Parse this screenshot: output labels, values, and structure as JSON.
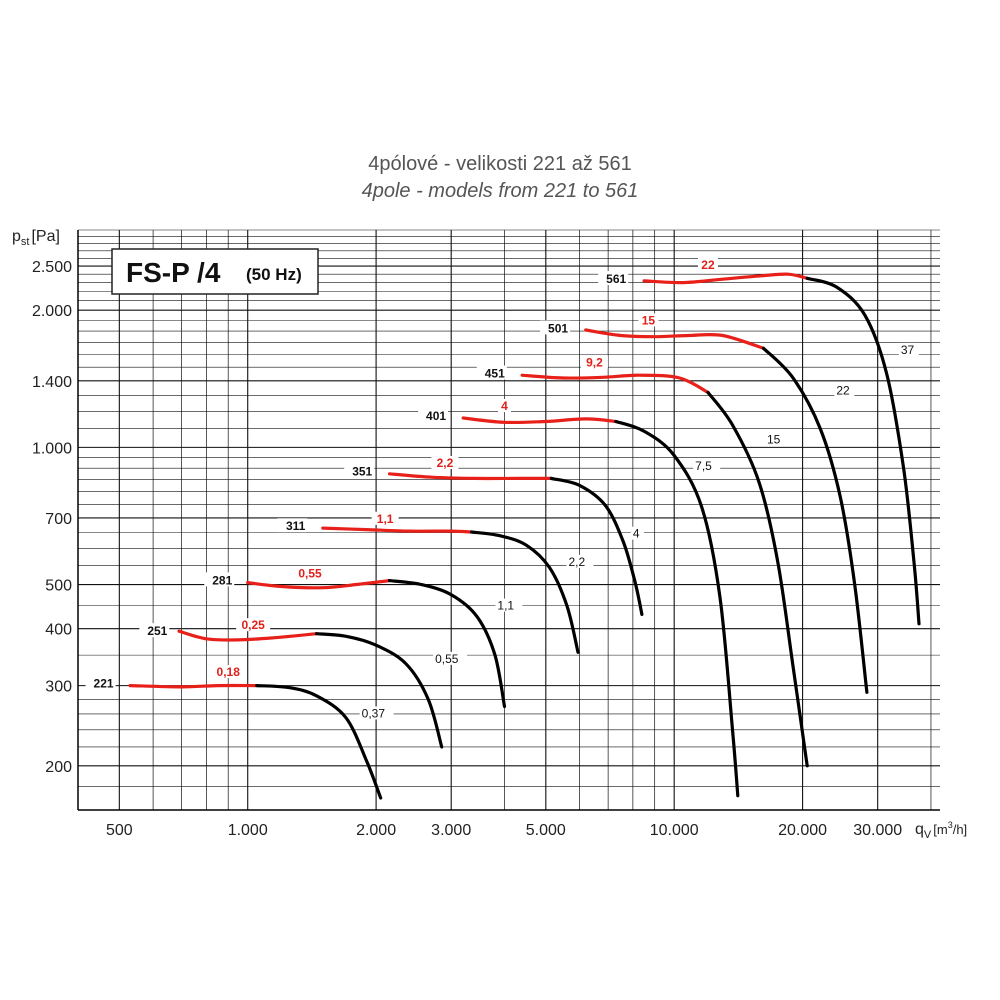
{
  "chart_data": {
    "type": "line",
    "title": "4pólové - velikosti 221 až 561",
    "subtitle": "4pole - models from 221 to 561",
    "ylabel": "p",
    "ylabel_sub": "st",
    "ylabel_unit": "[Pa]",
    "xlabel": "q",
    "xlabel_sub": "V",
    "xlabel_unit": "[m",
    "xlabel_sup": "3",
    "xlabel_unit_end": "/h]",
    "box_label": "FS-P /4",
    "box_sublabel": "(50 Hz)",
    "x_scale": "log",
    "y_scale": "log",
    "xlim": [
      400,
      42000
    ],
    "ylim": [
      160,
      3000
    ],
    "grid": true,
    "x_ticks": [
      {
        "value": 500,
        "label": "500"
      },
      {
        "value": 1000,
        "label": "1.000"
      },
      {
        "value": 2000,
        "label": "2.000"
      },
      {
        "value": 3000,
        "label": "3.000"
      },
      {
        "value": 5000,
        "label": "5.000"
      },
      {
        "value": 10000,
        "label": "10.000"
      },
      {
        "value": 20000,
        "label": "20.000"
      },
      {
        "value": 30000,
        "label": "30.000"
      }
    ],
    "y_ticks": [
      {
        "value": 200,
        "label": "200"
      },
      {
        "value": 300,
        "label": "300"
      },
      {
        "value": 400,
        "label": "400"
      },
      {
        "value": 500,
        "label": "500"
      },
      {
        "value": 700,
        "label": "700"
      },
      {
        "value": 1000,
        "label": "1.000"
      },
      {
        "value": 1400,
        "label": "1.400"
      },
      {
        "value": 2000,
        "label": "2.000"
      },
      {
        "value": 2500,
        "label": "2.500"
      }
    ],
    "series": [
      {
        "name": "221",
        "power_red": "0,18",
        "power_black": "0,37",
        "red": [
          [
            530,
            300
          ],
          [
            700,
            298
          ],
          [
            850,
            300
          ],
          [
            1050,
            300
          ]
        ],
        "black": [
          [
            1050,
            300
          ],
          [
            1250,
            297
          ],
          [
            1450,
            285
          ],
          [
            1700,
            255
          ],
          [
            1900,
            205
          ],
          [
            2050,
            170
          ]
        ]
      },
      {
        "name": "251",
        "power_red": "0,25",
        "power_black": "0,55",
        "red": [
          [
            690,
            395
          ],
          [
            800,
            380
          ],
          [
            950,
            378
          ],
          [
            1150,
            382
          ],
          [
            1450,
            390
          ]
        ],
        "black": [
          [
            1450,
            390
          ],
          [
            1700,
            385
          ],
          [
            2000,
            368
          ],
          [
            2350,
            335
          ],
          [
            2650,
            280
          ],
          [
            2850,
            220
          ]
        ]
      },
      {
        "name": "281",
        "power_red": "0,55",
        "power_black": "1,1",
        "red": [
          [
            1000,
            505
          ],
          [
            1200,
            495
          ],
          [
            1500,
            492
          ],
          [
            1800,
            500
          ],
          [
            2150,
            510
          ]
        ],
        "black": [
          [
            2150,
            510
          ],
          [
            2550,
            500
          ],
          [
            3000,
            475
          ],
          [
            3450,
            425
          ],
          [
            3800,
            350
          ],
          [
            4000,
            270
          ]
        ]
      },
      {
        "name": "311",
        "power_red": "1,1",
        "power_black": "2,2",
        "red": [
          [
            1500,
            665
          ],
          [
            1900,
            660
          ],
          [
            2400,
            655
          ],
          [
            3000,
            655
          ],
          [
            3350,
            652
          ]
        ],
        "black": [
          [
            3350,
            652
          ],
          [
            3900,
            640
          ],
          [
            4500,
            610
          ],
          [
            5100,
            545
          ],
          [
            5600,
            450
          ],
          [
            5950,
            355
          ]
        ]
      },
      {
        "name": "351",
        "power_red": "2,2",
        "power_black": "4",
        "red": [
          [
            2150,
            875
          ],
          [
            2700,
            860
          ],
          [
            3400,
            855
          ],
          [
            4300,
            855
          ],
          [
            5150,
            855
          ]
        ],
        "black": [
          [
            5150,
            855
          ],
          [
            6000,
            825
          ],
          [
            6900,
            745
          ],
          [
            7600,
            620
          ],
          [
            8100,
            505
          ],
          [
            8400,
            430
          ]
        ]
      },
      {
        "name": "401",
        "power_red": "4",
        "power_black": "7,5",
        "red": [
          [
            3200,
            1160
          ],
          [
            4000,
            1135
          ],
          [
            5000,
            1140
          ],
          [
            6200,
            1155
          ],
          [
            7300,
            1140
          ]
        ],
        "black": [
          [
            7300,
            1140
          ],
          [
            8500,
            1085
          ],
          [
            10000,
            960
          ],
          [
            11600,
            740
          ],
          [
            12800,
            470
          ],
          [
            13700,
            240
          ],
          [
            14100,
            172
          ]
        ]
      },
      {
        "name": "451",
        "power_red": "9,2",
        "power_black": "15",
        "red": [
          [
            4400,
            1440
          ],
          [
            5500,
            1420
          ],
          [
            6800,
            1425
          ],
          [
            8300,
            1440
          ],
          [
            10300,
            1420
          ],
          [
            12000,
            1320
          ]
        ],
        "black": [
          [
            12000,
            1320
          ],
          [
            13700,
            1120
          ],
          [
            15800,
            840
          ],
          [
            17500,
            560
          ],
          [
            19000,
            330
          ],
          [
            20500,
            200
          ]
        ]
      },
      {
        "name": "501",
        "power_red": "15",
        "power_black": "22",
        "red": [
          [
            6200,
            1810
          ],
          [
            7500,
            1760
          ],
          [
            9000,
            1750
          ],
          [
            10800,
            1760
          ],
          [
            13000,
            1760
          ],
          [
            16200,
            1650
          ]
        ],
        "black": [
          [
            16200,
            1650
          ],
          [
            19000,
            1420
          ],
          [
            22000,
            1100
          ],
          [
            24500,
            780
          ],
          [
            26500,
            500
          ],
          [
            28300,
            290
          ]
        ]
      },
      {
        "name": "561",
        "power_red": "22",
        "power_black": "37",
        "red": [
          [
            8500,
            2320
          ],
          [
            10500,
            2300
          ],
          [
            13000,
            2340
          ],
          [
            16000,
            2380
          ],
          [
            18500,
            2400
          ],
          [
            20500,
            2350
          ]
        ],
        "black": [
          [
            20500,
            2350
          ],
          [
            24000,
            2250
          ],
          [
            28000,
            1950
          ],
          [
            31500,
            1450
          ],
          [
            34500,
            900
          ],
          [
            36500,
            560
          ],
          [
            37500,
            410
          ]
        ]
      }
    ],
    "annotations": [
      {
        "series": "221",
        "name_at": [
          490,
          302
        ],
        "red_at": [
          900,
          318
        ],
        "black_at": [
          1850,
          258
        ]
      },
      {
        "series": "251",
        "name_at": [
          655,
          393
        ],
        "red_at": [
          1030,
          403
        ],
        "black_at": [
          2750,
          340
        ]
      },
      {
        "series": "281",
        "name_at": [
          930,
          508
        ],
        "red_at": [
          1400,
          523
        ],
        "black_at": [
          3850,
          445
        ]
      },
      {
        "series": "311",
        "name_at": [
          1380,
          668
        ],
        "red_at": [
          2100,
          690
        ],
        "black_at": [
          5650,
          555
        ]
      },
      {
        "series": "351",
        "name_at": [
          1980,
          880
        ],
        "red_at": [
          2900,
          915
        ],
        "black_at": [
          8000,
          640
        ]
      },
      {
        "series": "401",
        "name_at": [
          2950,
          1165
        ],
        "red_at": [
          4000,
          1220
        ],
        "black_at": [
          11200,
          900
        ]
      },
      {
        "series": "451",
        "name_at": [
          4050,
          1445
        ],
        "red_at": [
          6500,
          1520
        ],
        "black_at": [
          16500,
          1030
        ]
      },
      {
        "series": "501",
        "name_at": [
          5700,
          1815
        ],
        "red_at": [
          8700,
          1880
        ],
        "black_at": [
          24000,
          1320
        ]
      },
      {
        "series": "561",
        "name_at": [
          7800,
          2330
        ],
        "red_at": [
          12000,
          2490
        ],
        "black_at": [
          34000,
          1620
        ]
      }
    ]
  }
}
